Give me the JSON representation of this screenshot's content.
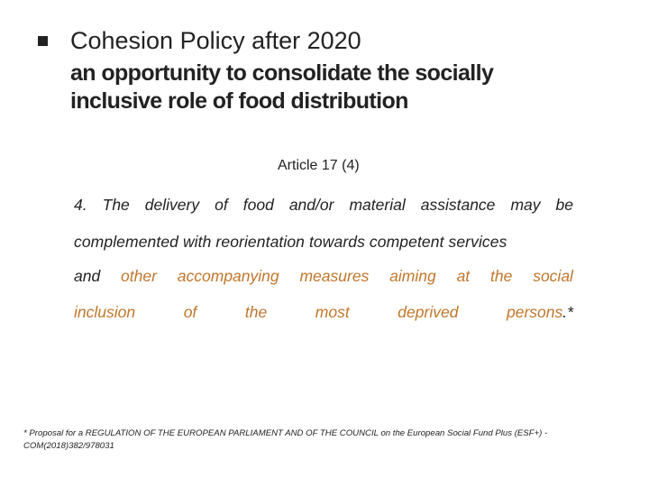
{
  "slide": {
    "title": "Cohesion Policy after 2020",
    "subtitle": "an opportunity to consolidate the socially inclusive role of food distribution",
    "article_ref": "Article 17 (4)",
    "article_lines": [
      [
        "4.",
        "The",
        "delivery",
        "of",
        "food",
        "and/or",
        "material",
        "assistance",
        "may",
        "be"
      ],
      [
        "complemented with reorientation towards competent services"
      ],
      [
        "and",
        "other",
        "accompanying",
        "measures",
        "aiming",
        "at",
        "the",
        "social"
      ],
      [
        "inclusion",
        "of",
        "the",
        "most",
        "deprived",
        "persons.*"
      ]
    ],
    "footnote": "* Proposal for a REGULATION OF THE EUROPEAN PARLIAMENT AND OF THE COUNCIL on the European Social Fund Plus (ESF+) - COM(2018)382/978031"
  },
  "colors": {
    "highlight": "#c0762b",
    "text": "#222222"
  }
}
